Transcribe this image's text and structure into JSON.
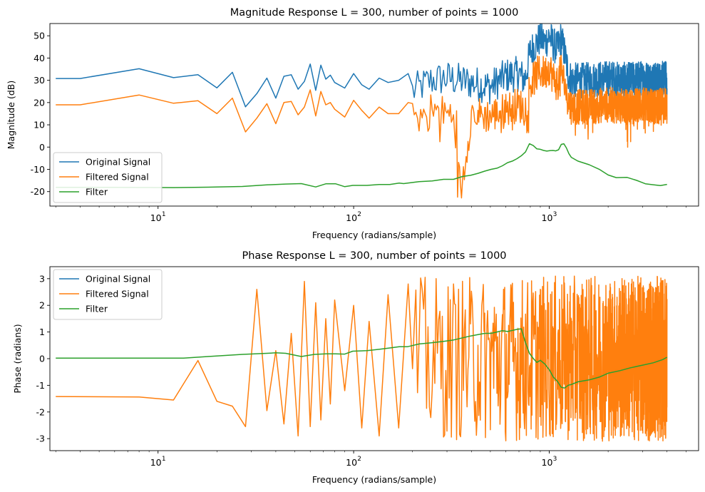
{
  "chart_data": [
    {
      "type": "line",
      "title": "Magnitude Response L = 300, number of points = 1000",
      "xlabel": "Frequency (radians/sample)",
      "ylabel": "Magnitude (dB)",
      "xscale": "log",
      "xlim": [
        2.8,
        5800
      ],
      "ylim": [
        -26.5,
        55.5
      ],
      "x_ticks": [
        {
          "value": 10,
          "label": "10",
          "exp": "1"
        },
        {
          "value": 100,
          "label": "10",
          "exp": "2"
        },
        {
          "value": 1000,
          "label": "10",
          "exp": "3"
        }
      ],
      "y_ticks": [
        -20,
        -10,
        0,
        10,
        20,
        30,
        40,
        50
      ],
      "grid": false,
      "legend": "lower-left",
      "series": [
        {
          "name": "Original Signal",
          "color": "#1f77b4",
          "x": [
            3,
            4,
            8,
            12,
            16,
            20,
            24,
            28,
            32,
            36,
            40,
            44,
            48,
            52,
            56,
            60,
            64,
            68,
            72,
            76,
            80,
            90,
            100,
            110,
            120,
            135,
            150,
            170,
            190,
            200,
            250,
            300,
            400,
            500,
            600,
            700,
            750,
            800,
            850,
            900,
            950,
            1000,
            1050,
            1100,
            1150,
            1200,
            1250,
            1300,
            1500,
            2000,
            2500,
            3000,
            3500,
            4000
          ],
          "y": [
            30.8,
            30.8,
            35.2,
            31.2,
            32.5,
            26.6,
            33.6,
            18.1,
            24,
            31,
            22,
            31.8,
            32.5,
            26,
            29.5,
            37.3,
            25.5,
            36.8,
            30.5,
            32.3,
            29,
            26.5,
            33,
            28,
            26,
            31,
            29,
            30,
            33,
            25,
            30,
            31,
            29,
            27,
            32,
            33,
            30,
            43,
            46,
            49,
            47,
            50,
            46,
            44,
            49,
            42,
            33,
            30,
            30,
            31,
            30,
            31,
            30,
            31
          ]
        },
        {
          "name": "Filtered Signal",
          "color": "#ff7f0e",
          "x": [
            3,
            4,
            8,
            12,
            16,
            20,
            24,
            28,
            32,
            36,
            40,
            44,
            48,
            52,
            56,
            60,
            64,
            68,
            72,
            76,
            80,
            90,
            100,
            110,
            120,
            135,
            150,
            170,
            190,
            200,
            250,
            300,
            340,
            350,
            400,
            500,
            600,
            700,
            750,
            800,
            850,
            900,
            950,
            1000,
            1050,
            1100,
            1150,
            1200,
            1250,
            1300,
            1500,
            2000,
            2500,
            3000,
            3500,
            4000
          ],
          "y": [
            19,
            19,
            23.4,
            19.7,
            20.8,
            15,
            22,
            6.8,
            13,
            19.5,
            10.5,
            20,
            20.5,
            14.5,
            18,
            25.7,
            14,
            25,
            19,
            20,
            17,
            13.5,
            21,
            16.5,
            13,
            18,
            15,
            15,
            20,
            12,
            17,
            15,
            14,
            -22.5,
            15,
            14,
            17,
            19,
            17,
            28,
            32,
            34,
            33,
            36,
            31,
            28,
            35,
            28,
            20,
            18,
            18,
            19,
            18,
            19,
            18,
            19
          ]
        },
        {
          "name": "Filter",
          "color": "#2ca02c",
          "x": [
            3,
            6,
            12,
            18,
            27,
            36,
            45,
            54,
            64,
            72,
            81,
            90,
            99,
            117,
            135,
            153,
            171,
            180,
            216,
            252,
            288,
            324,
            360,
            396,
            432,
            468,
            504,
            540,
            576,
            612,
            648,
            684,
            720,
            756,
            792,
            828,
            864,
            900,
            936,
            972,
            1008,
            1044,
            1080,
            1116,
            1152,
            1188,
            1224,
            1260,
            1296,
            1400,
            1600,
            1800,
            2000,
            2200,
            2500,
            2800,
            3100,
            3400,
            3700,
            4000
          ],
          "y": [
            -18.1,
            -18.1,
            -18.2,
            -18,
            -17.7,
            -17,
            -16.6,
            -16.4,
            -17.9,
            -16.5,
            -16.5,
            -17.8,
            -17.2,
            -17.2,
            -16.8,
            -16.8,
            -16.2,
            -16.4,
            -15.5,
            -15.2,
            -14.5,
            -14.5,
            -13.2,
            -12.7,
            -11.8,
            -10.8,
            -10,
            -9.5,
            -8.4,
            -7,
            -6.3,
            -5.2,
            -3.9,
            -2.2,
            1.5,
            0.7,
            -0.8,
            -1,
            -1.5,
            -1.8,
            -1.6,
            -1.5,
            -1.7,
            -1.2,
            1.2,
            1.5,
            -0.4,
            -3,
            -4.6,
            -6.3,
            -8.5,
            -10.5,
            -12.3,
            -13.2,
            -14,
            -15,
            -15.8,
            -16.5,
            -16.8,
            -17
          ]
        }
      ]
    },
    {
      "type": "line",
      "title": "Phase Response L = 300, number of points = 1000",
      "xlabel": "Frequency (radians/sample)",
      "ylabel": "Phase (radians)",
      "xscale": "log",
      "xlim": [
        2.8,
        5800
      ],
      "ylim": [
        -3.45,
        3.45
      ],
      "x_ticks": [
        {
          "value": 10,
          "label": "10",
          "exp": "1"
        },
        {
          "value": 100,
          "label": "10",
          "exp": "2"
        },
        {
          "value": 1000,
          "label": "10",
          "exp": "3"
        }
      ],
      "y_ticks": [
        -3,
        -2,
        -1,
        0,
        1,
        2,
        3
      ],
      "grid": false,
      "legend": "upper-left",
      "series": [
        {
          "name": "Original Signal",
          "color": "#1f77b4",
          "x": [
            3,
            8,
            12,
            16,
            20,
            24,
            28,
            32,
            36,
            40,
            44,
            48,
            52,
            56,
            60,
            64,
            68,
            72,
            76,
            80,
            90,
            100,
            110,
            120,
            135,
            150,
            170,
            190,
            220,
            260,
            300,
            350,
            400,
            450,
            500,
            600,
            700,
            800,
            900,
            1000,
            1100,
            1200,
            1400,
            1700,
            2000,
            2500,
            3000,
            3500,
            4000
          ],
          "y": [
            -1.42,
            -1.44,
            -1.55,
            -0.07,
            -1.6,
            -1.78,
            -2.55,
            2.6,
            -1.95,
            0.3,
            -2.45,
            0.95,
            -2.9,
            2.9,
            -2.55,
            2.1,
            -2.3,
            1.5,
            -1.7,
            2.2,
            -1.2,
            2,
            -2.6,
            1.4,
            -2.9,
            2.4,
            -2.6,
            2.8,
            -2.7,
            2.9,
            -3.1,
            3.0,
            -2.9,
            3.1,
            -3.0,
            3.1,
            -3.1,
            3.0,
            -3.1,
            3.1,
            -3.0,
            3.1,
            -3.1,
            3.0,
            -3.1,
            3.1,
            -3.0,
            3.1,
            -3.0
          ]
        },
        {
          "name": "Filtered Signal",
          "color": "#ff7f0e",
          "x": [
            3,
            8,
            12,
            16,
            20,
            24,
            28,
            32,
            36,
            40,
            44,
            48,
            52,
            56,
            60,
            64,
            68,
            72,
            76,
            80,
            90,
            100,
            110,
            120,
            135,
            150,
            170,
            190,
            220,
            260,
            300,
            350,
            400,
            450,
            500,
            600,
            700,
            800,
            900,
            1000,
            1100,
            1200,
            1400,
            1700,
            2000,
            2500,
            3000,
            3500,
            4000
          ],
          "y": [
            -1.42,
            -1.44,
            -1.55,
            -0.07,
            -1.6,
            -1.78,
            -2.55,
            2.6,
            -1.95,
            0.3,
            -2.45,
            0.95,
            -2.9,
            2.9,
            -2.55,
            2.1,
            -2.3,
            1.5,
            -1.7,
            2.2,
            -1.2,
            2,
            -2.6,
            1.4,
            -2.9,
            2.4,
            -2.6,
            2.8,
            -2.7,
            2.9,
            -3.1,
            3.0,
            -2.9,
            3.1,
            -3.0,
            3.1,
            -3.1,
            3.0,
            -3.1,
            3.1,
            -3.0,
            3.1,
            -3.1,
            3.0,
            -3.1,
            3.1,
            -3.0,
            3.1,
            -3.0
          ]
        },
        {
          "name": "Filter",
          "color": "#2ca02c",
          "x": [
            3,
            6,
            9,
            13.5,
            18,
            27,
            36,
            40,
            45,
            54,
            63,
            72,
            81,
            90,
            99,
            117,
            135,
            153,
            171,
            189,
            216,
            252,
            288,
            324,
            360,
            396,
            432,
            468,
            504,
            540,
            576,
            612,
            648,
            684,
            720,
            756,
            792,
            828,
            864,
            900,
            950,
            1000,
            1050,
            1100,
            1150,
            1200,
            1250,
            1300,
            1400,
            1600,
            1800,
            2000,
            2300,
            2600,
            3000,
            3400,
            3800,
            4000
          ],
          "y": [
            0.02,
            0.02,
            0.02,
            0.02,
            0.08,
            0.16,
            0.2,
            0.22,
            0.2,
            0.08,
            0.16,
            0.18,
            0.18,
            0.17,
            0.28,
            0.3,
            0.35,
            0.4,
            0.45,
            0.45,
            0.55,
            0.6,
            0.65,
            0.7,
            0.78,
            0.85,
            0.9,
            0.95,
            0.95,
            1.0,
            1.05,
            1.02,
            1.06,
            1.1,
            1.12,
            0.6,
            0.2,
            0.05,
            -0.1,
            -0.1,
            -0.2,
            -0.4,
            -0.7,
            -0.9,
            -1.1,
            -1.05,
            -1.0,
            -0.95,
            -0.9,
            -0.8,
            -0.7,
            -0.6,
            -0.5,
            -0.35,
            -0.25,
            -0.15,
            -0.05,
            0.0
          ]
        }
      ]
    }
  ]
}
